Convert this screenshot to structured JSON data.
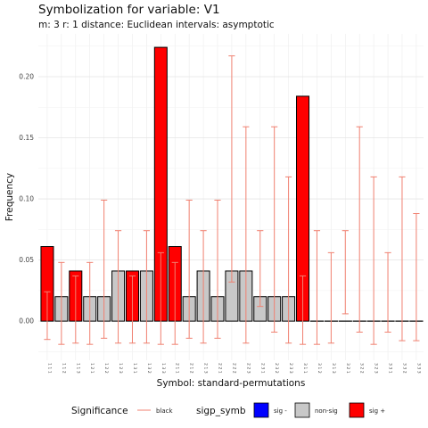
{
  "chart_data": {
    "type": "bar",
    "title": "Symbolization for variable: V1",
    "subtitle": "m:  3   r:   1   distance:   Euclidean   intervals:   asymptotic",
    "xlabel": "Symbol: standard-permutations",
    "ylabel": "Frequency",
    "ylim": [
      -0.032,
      0.235
    ],
    "yticks": [
      0.0,
      0.05,
      0.1,
      0.15,
      0.2
    ],
    "ytick_labels": [
      "0.00",
      "0.05",
      "0.10",
      "0.15",
      "0.20"
    ],
    "grid": true,
    "legend_position": "bottom",
    "categories": [
      "1 1 1",
      "1 1 2",
      "1 1 3",
      "1 2 1",
      "1 2 2",
      "1 2 3",
      "1 3 1",
      "1 3 2",
      "1 3 3",
      "2 1 1",
      "2 1 2",
      "2 1 3",
      "2 2 1",
      "2 2 2",
      "2 2 3",
      "2 3 1",
      "2 3 2",
      "2 3 3",
      "3 1 1",
      "3 1 2",
      "3 1 3",
      "3 2 1",
      "3 2 2",
      "3 2 3",
      "3 3 1",
      "3 3 2",
      "3 3 3"
    ],
    "values": [
      0.061,
      0.02,
      0.041,
      0.02,
      0.02,
      0.041,
      0.041,
      0.041,
      0.224,
      0.061,
      0.02,
      0.041,
      0.02,
      0.041,
      0.041,
      0.02,
      0.02,
      0.02,
      0.184,
      0.0,
      0.0,
      0.0,
      0.0,
      0.0,
      0.0,
      0.0,
      0.0
    ],
    "significance": [
      "sig +",
      "non-sig",
      "sig +",
      "non-sig",
      "non-sig",
      "non-sig",
      "sig +",
      "non-sig",
      "sig +",
      "sig +",
      "non-sig",
      "non-sig",
      "non-sig",
      "non-sig",
      "non-sig",
      "non-sig",
      "non-sig",
      "non-sig",
      "sig +",
      "non-sig",
      "non-sig",
      "non-sig",
      "non-sig",
      "non-sig",
      "non-sig",
      "non-sig",
      "non-sig"
    ],
    "intervals_lower": [
      -0.015,
      -0.019,
      -0.018,
      -0.019,
      -0.014,
      -0.018,
      -0.018,
      -0.018,
      -0.019,
      -0.019,
      -0.014,
      -0.018,
      -0.014,
      0.032,
      -0.018,
      0.012,
      -0.009,
      -0.018,
      -0.019,
      -0.019,
      -0.018,
      0.006,
      -0.009,
      -0.019,
      -0.009,
      -0.016,
      -0.016
    ],
    "intervals_upper": [
      0.024,
      0.048,
      0.037,
      0.048,
      0.099,
      0.074,
      0.037,
      0.074,
      0.056,
      0.048,
      0.099,
      0.074,
      0.099,
      0.217,
      0.159,
      0.074,
      0.159,
      0.118,
      0.037,
      0.074,
      0.056,
      0.074,
      0.159,
      0.118,
      0.056,
      0.118,
      0.088
    ],
    "legend": {
      "significance_title": "Significance",
      "significance_line_label": "black",
      "sigp_title": "sigp_symb",
      "items": [
        {
          "label": "sig -",
          "color": "#0000ff"
        },
        {
          "label": "non-sig",
          "color": "#c8c8c8"
        },
        {
          "label": "sig +",
          "color": "#ff0000"
        }
      ]
    },
    "colors": {
      "sig +": "#ff0000",
      "non-sig": "#c8c8c8",
      "sig -": "#0000ff",
      "interval": "#f08070"
    }
  }
}
